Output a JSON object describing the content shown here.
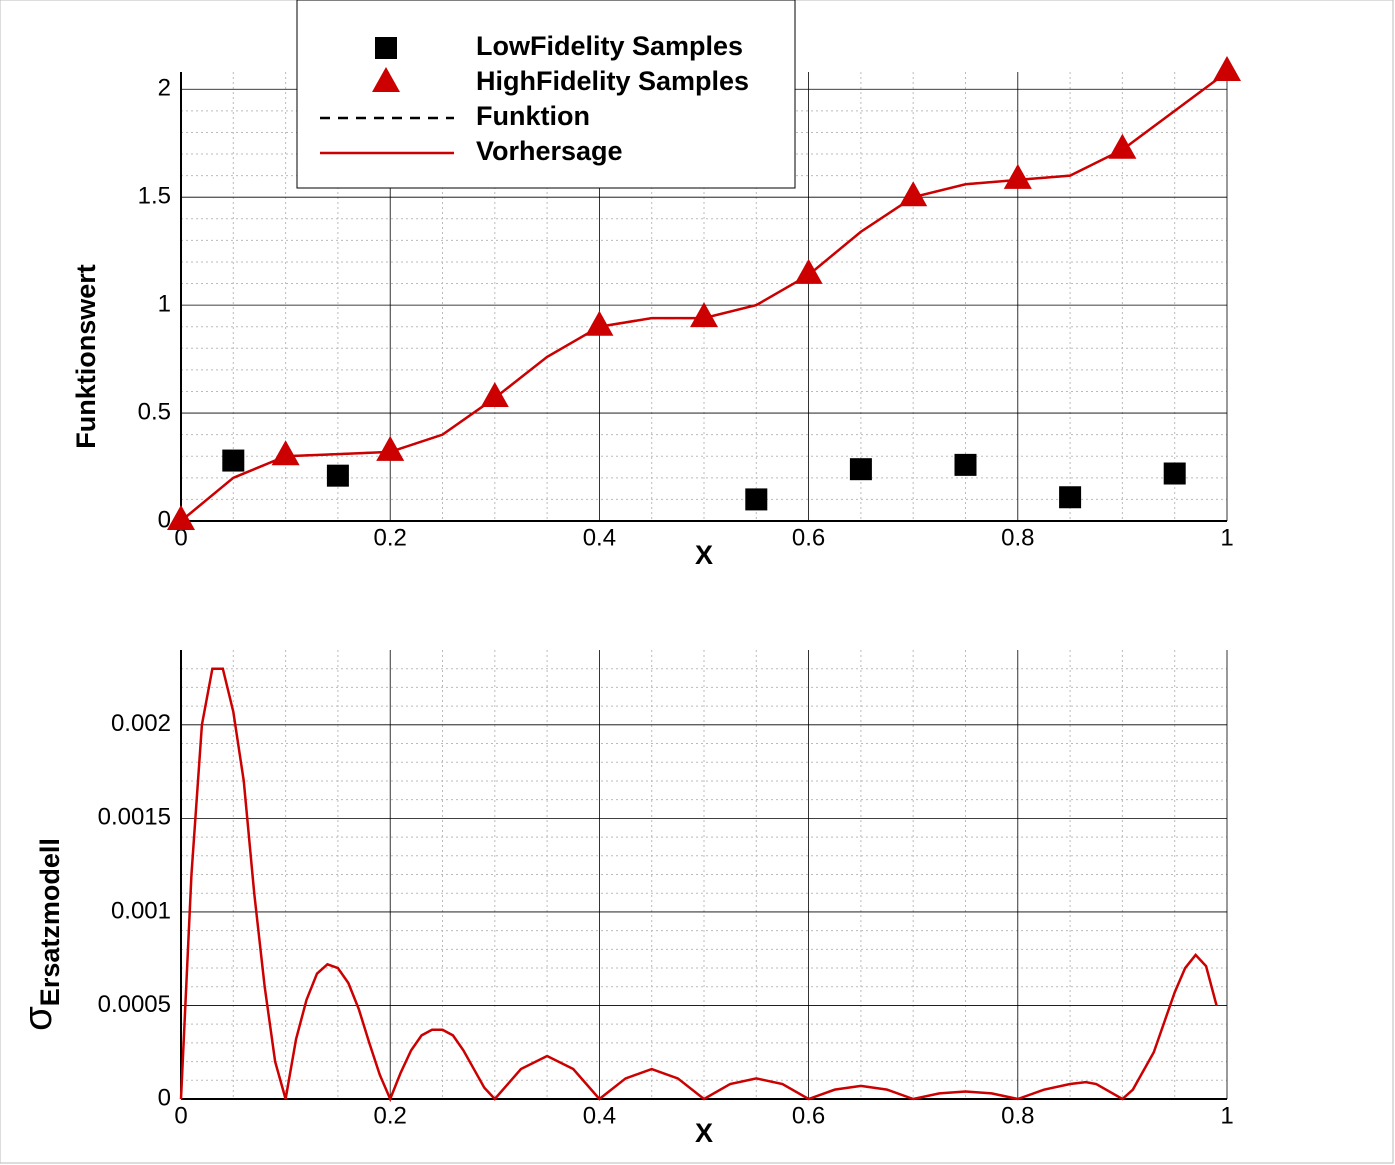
{
  "chart_data": [
    {
      "type": "line",
      "xlabel": "X",
      "ylabel": "Funktionswert",
      "xlim": [
        0,
        1
      ],
      "ylim": [
        0,
        2.08
      ],
      "xticks": [
        0,
        0.2,
        0.4,
        0.6,
        0.8,
        1
      ],
      "yticks": [
        0,
        0.5,
        1,
        1.5,
        2
      ],
      "grid": true,
      "minor_grid": true,
      "legend": "top",
      "series": [
        {
          "name": "LowFidelity Samples",
          "color": "#000000",
          "mode": "square",
          "x": [
            0.05,
            0.15,
            0.55,
            0.65,
            0.75,
            0.85,
            0.95
          ],
          "values": [
            0.28,
            0.21,
            0.1,
            0.24,
            0.26,
            0.11,
            0.22
          ]
        },
        {
          "name": "HighFidelity Samples",
          "color": "#cc0000",
          "mode": "triangle",
          "x": [
            0,
            0.1,
            0.2,
            0.3,
            0.4,
            0.5,
            0.6,
            0.7,
            0.8,
            0.9,
            1
          ],
          "values": [
            0,
            0.3,
            0.32,
            0.57,
            0.9,
            0.94,
            1.14,
            1.5,
            1.58,
            1.72,
            2.08
          ]
        },
        {
          "name": "Funktion",
          "color": "#000000",
          "mode": "dashed",
          "x": [
            0,
            0.05,
            0.1,
            0.15,
            0.2,
            0.25,
            0.3,
            0.35,
            0.4,
            0.45,
            0.5,
            0.55,
            0.6,
            0.65,
            0.7,
            0.75,
            0.8,
            0.85,
            0.9,
            0.95,
            1
          ],
          "values": [
            0,
            0.2,
            0.3,
            0.31,
            0.32,
            0.4,
            0.57,
            0.76,
            0.9,
            0.94,
            0.94,
            1.0,
            1.14,
            1.34,
            1.5,
            1.56,
            1.58,
            1.6,
            1.72,
            1.9,
            2.08
          ]
        },
        {
          "name": "Vorhersage",
          "color": "#cc0000",
          "mode": "solid",
          "x": [
            0,
            0.05,
            0.1,
            0.15,
            0.2,
            0.25,
            0.3,
            0.35,
            0.4,
            0.45,
            0.5,
            0.55,
            0.6,
            0.65,
            0.7,
            0.75,
            0.8,
            0.85,
            0.9,
            0.95,
            1
          ],
          "values": [
            0,
            0.2,
            0.3,
            0.31,
            0.32,
            0.4,
            0.57,
            0.76,
            0.9,
            0.94,
            0.94,
            1.0,
            1.14,
            1.34,
            1.5,
            1.56,
            1.58,
            1.6,
            1.72,
            1.9,
            2.08
          ]
        }
      ]
    },
    {
      "type": "line",
      "xlabel": "X",
      "ylabel": "σ",
      "ylabel_sub": "Ersatzmodell",
      "xlim": [
        0,
        1
      ],
      "ylim": [
        0,
        0.0024
      ],
      "xticks": [
        0,
        0.2,
        0.4,
        0.6,
        0.8,
        1
      ],
      "yticks": [
        0,
        0.0005,
        0.001,
        0.0015,
        0.002
      ],
      "grid": true,
      "minor_grid": true,
      "series": [
        {
          "color": "#cc0000",
          "mode": "solid",
          "x": [
            0,
            0.01,
            0.02,
            0.03,
            0.04,
            0.05,
            0.06,
            0.07,
            0.08,
            0.09,
            0.1,
            0.11,
            0.12,
            0.13,
            0.14,
            0.15,
            0.16,
            0.17,
            0.18,
            0.19,
            0.2,
            0.21,
            0.22,
            0.23,
            0.24,
            0.25,
            0.26,
            0.27,
            0.28,
            0.29,
            0.3,
            0.325,
            0.35,
            0.375,
            0.4,
            0.425,
            0.45,
            0.475,
            0.5,
            0.525,
            0.55,
            0.575,
            0.6,
            0.625,
            0.65,
            0.675,
            0.7,
            0.725,
            0.75,
            0.775,
            0.8,
            0.825,
            0.85,
            0.865,
            0.875,
            0.9,
            0.91,
            0.93,
            0.95,
            0.96,
            0.97,
            0.98,
            0.99
          ],
          "values": [
            0,
            0.0012,
            0.002,
            0.0023,
            0.0023,
            0.00207,
            0.0017,
            0.0011,
            0.0006,
            0.0002,
            0,
            0.00032,
            0.00053,
            0.00067,
            0.00072,
            0.0007,
            0.00062,
            0.00048,
            0.0003,
            0.00013,
            0,
            0.00014,
            0.00026,
            0.00034,
            0.00037,
            0.00037,
            0.00034,
            0.00026,
            0.00016,
            6e-05,
            0,
            0.00016,
            0.00023,
            0.00016,
            0,
            0.00011,
            0.00016,
            0.00011,
            0,
            8e-05,
            0.00011,
            8e-05,
            0,
            5e-05,
            7e-05,
            5e-05,
            0,
            3e-05,
            4e-05,
            3e-05,
            0,
            5e-05,
            8e-05,
            9e-05,
            8e-05,
            0,
            5e-05,
            0.00025,
            0.00057,
            0.0007,
            0.00077,
            0.00071,
            0.0005
          ]
        }
      ]
    }
  ]
}
